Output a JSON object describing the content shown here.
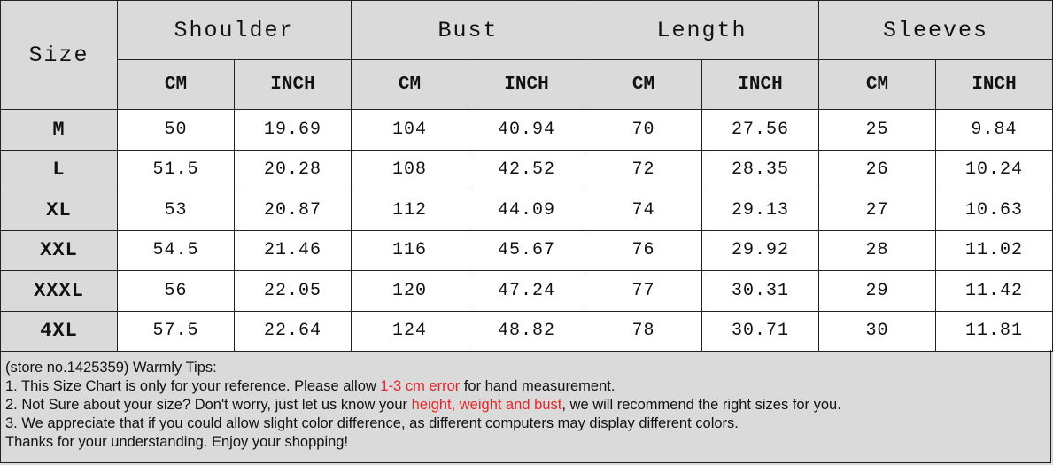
{
  "table": {
    "size_header": "Size",
    "groups": [
      "Shoulder",
      "Bust",
      "Length",
      "Sleeves"
    ],
    "units": [
      "CM",
      "INCH"
    ],
    "rows": [
      {
        "size": "M",
        "values": [
          "50",
          "19.69",
          "104",
          "40.94",
          "70",
          "27.56",
          "25",
          "9.84"
        ]
      },
      {
        "size": "L",
        "values": [
          "51.5",
          "20.28",
          "108",
          "42.52",
          "72",
          "28.35",
          "26",
          "10.24"
        ]
      },
      {
        "size": "XL",
        "values": [
          "53",
          "20.87",
          "112",
          "44.09",
          "74",
          "29.13",
          "27",
          "10.63"
        ]
      },
      {
        "size": "XXL",
        "values": [
          "54.5",
          "21.46",
          "116",
          "45.67",
          "76",
          "29.92",
          "28",
          "11.02"
        ]
      },
      {
        "size": "XXXL",
        "values": [
          "56",
          "22.05",
          "120",
          "47.24",
          "77",
          "30.31",
          "29",
          "11.42"
        ]
      },
      {
        "size": "4XL",
        "values": [
          "57.5",
          "22.64",
          "124",
          "48.82",
          "78",
          "30.71",
          "30",
          "11.81"
        ]
      }
    ]
  },
  "notes": {
    "title": "(store no.1425359) Warmly Tips:",
    "line1": {
      "before": "1. This Size Chart is only for your reference. Please allow ",
      "highlight": "1-3 cm error",
      "after": " for hand measurement."
    },
    "line2": {
      "before": "2. Not Sure about your size? Don't worry, just let us know your ",
      "highlight": "height, weight and bust",
      "after": ", we will recommend the right sizes for you."
    },
    "line3": "3. We appreciate that if you could allow slight color difference, as different computers may display different colors.",
    "line4": "Thanks for your understanding. Enjoy your shopping!",
    "highlight_color": "#e5252a"
  }
}
